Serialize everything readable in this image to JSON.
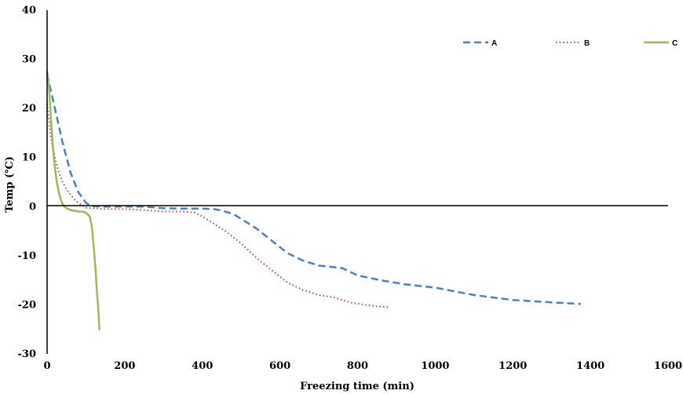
{
  "chart_data": {
    "type": "line",
    "xlabel": "Freezing time  (min)",
    "ylabel": "Temp (℃)",
    "xlim": [
      0,
      1600
    ],
    "ylim": [
      -30,
      40
    ],
    "xticks": [
      0,
      200,
      400,
      600,
      800,
      1000,
      1200,
      1400,
      1600
    ],
    "yticks": [
      -30,
      -20,
      -10,
      0,
      10,
      20,
      30,
      40
    ],
    "x_tick_labels": [
      "0",
      "200",
      "400",
      "600",
      "800",
      "1000",
      "1200",
      "1400",
      "1600"
    ],
    "y_tick_labels": [
      "-30",
      "-20",
      "-10",
      "0",
      "10",
      "20",
      "30",
      "40"
    ],
    "grid": false,
    "legend_position": "top-right",
    "series": [
      {
        "name": "A",
        "color": "#4f81bd",
        "style": "dashed",
        "x": [
          0,
          20,
          40,
          60,
          80,
          100,
          110,
          120,
          150,
          200,
          250,
          300,
          350,
          400,
          430,
          450,
          480,
          500,
          540,
          580,
          620,
          660,
          700,
          760,
          800,
          860,
          920,
          1000,
          1100,
          1200,
          1300,
          1375
        ],
        "y": [
          27,
          20,
          13,
          7,
          3,
          0.8,
          0.3,
          0.1,
          0,
          0,
          0,
          -0.3,
          -0.4,
          -0.4,
          -0.5,
          -0.8,
          -1.5,
          -2.5,
          -4.5,
          -7,
          -9.5,
          -11,
          -12,
          -12.5,
          -14,
          -15,
          -15.8,
          -16.5,
          -18,
          -19,
          -19.5,
          -19.8
        ]
      },
      {
        "name": "B",
        "color": "#c0504d",
        "style": "dotted",
        "x": [
          0,
          10,
          20,
          30,
          40,
          50,
          60,
          70,
          80,
          90,
          100,
          150,
          200,
          250,
          300,
          350,
          380,
          400,
          430,
          460,
          500,
          540,
          580,
          620,
          660,
          700,
          740,
          780,
          820,
          850,
          880
        ],
        "y": [
          21,
          14,
          10,
          7,
          5,
          3.5,
          2.5,
          1.5,
          0.8,
          0.3,
          -0.2,
          -0.5,
          -0.5,
          -0.7,
          -1,
          -1,
          -1.2,
          -2,
          -3.5,
          -5,
          -7.5,
          -10.5,
          -13,
          -15.5,
          -17,
          -18,
          -18.5,
          -19.5,
          -20,
          -20.3,
          -20.5
        ]
      },
      {
        "name": "C",
        "color": "#9bbb59",
        "style": "solid",
        "x": [
          0,
          5,
          10,
          15,
          20,
          25,
          30,
          35,
          40,
          45,
          50,
          55,
          60,
          65,
          70,
          80,
          90,
          100,
          110,
          115,
          120,
          125,
          128,
          132,
          135
        ],
        "y": [
          27.5,
          24,
          18,
          12,
          8,
          5,
          3,
          1.5,
          0.5,
          0,
          -0.3,
          -0.5,
          -0.7,
          -0.8,
          -0.8,
          -1,
          -1,
          -1.2,
          -2,
          -4,
          -8,
          -13,
          -17,
          -21,
          -25
        ]
      }
    ]
  }
}
